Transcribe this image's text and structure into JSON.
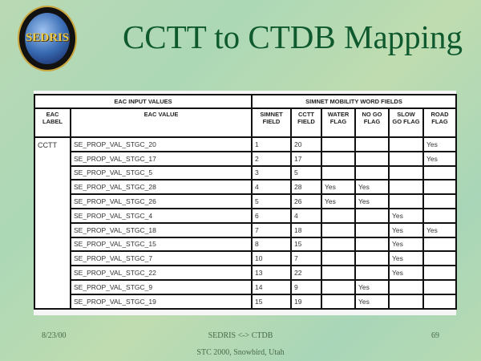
{
  "logo": {
    "text": "SEDRIS"
  },
  "title": "CCTT to CTDB Mapping",
  "table": {
    "group_headers": [
      "EAC INPUT VALUES",
      "SIMNET MOBILITY WORD FIELDS"
    ],
    "columns": [
      "EAC LABEL",
      "EAC VALUE",
      "SIMNET FIELD",
      "CCTT FIELD",
      "WATER FLAG",
      "NO GO FLAG",
      "SLOW GO FLAG",
      "ROAD FLAG"
    ],
    "eac_label": "CCTT",
    "rows": [
      [
        "SE_PROP_VAL_STGC_20",
        "1",
        "20",
        "",
        "",
        "",
        "Yes"
      ],
      [
        "SE_PROP_VAL_STGC_17",
        "2",
        "17",
        "",
        "",
        "",
        "Yes"
      ],
      [
        "SE_PROP_VAL_STGC_5",
        "3",
        "5",
        "",
        "",
        "",
        ""
      ],
      [
        "SE_PROP_VAL_STGC_28",
        "4",
        "28",
        "Yes",
        "Yes",
        "",
        ""
      ],
      [
        "SE_PROP_VAL_STGC_26",
        "5",
        "26",
        "Yes",
        "Yes",
        "",
        ""
      ],
      [
        "SE_PROP_VAL_STGC_4",
        "6",
        "4",
        "",
        "",
        "Yes",
        ""
      ],
      [
        "SE_PROP_VAL_STGC_18",
        "7",
        "18",
        "",
        "",
        "Yes",
        "Yes"
      ],
      [
        "SE_PROP_VAL_STGC_15",
        "8",
        "15",
        "",
        "",
        "Yes",
        ""
      ],
      [
        "SE_PROP_VAL_STGC_7",
        "10",
        "7",
        "",
        "",
        "Yes",
        ""
      ],
      [
        "SE_PROP_VAL_STGC_22",
        "13",
        "22",
        "",
        "",
        "Yes",
        ""
      ],
      [
        "SE_PROP_VAL_STGC_9",
        "14",
        "9",
        "",
        "Yes",
        "",
        ""
      ],
      [
        "SE_PROP_VAL_STGC_19",
        "15",
        "19",
        "",
        "Yes",
        "",
        ""
      ]
    ]
  },
  "footer": {
    "date": "8/23/00",
    "center": "SEDRIS <-> CTDB",
    "page": "69",
    "event": "STC 2000, Snowbird, Utah"
  }
}
